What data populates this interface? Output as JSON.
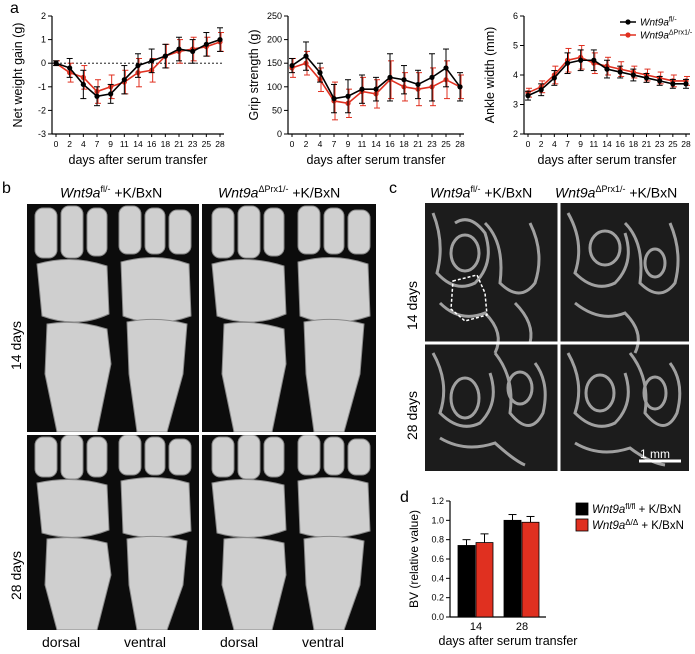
{
  "panels": {
    "a": "a",
    "b": "b",
    "c": "c",
    "d": "d"
  },
  "chart_data": [
    {
      "type": "line",
      "ylabel": "Net weight gain (g)",
      "xlabel": "days after serum transfer",
      "categories": [
        "0",
        "2",
        "4",
        "7",
        "9",
        "11",
        "14",
        "16",
        "18",
        "21",
        "23",
        "25",
        "28"
      ],
      "ylim": [
        -3,
        2
      ],
      "yticks": [
        "-3",
        "-2",
        "-1",
        "0",
        "1",
        "2"
      ],
      "series": [
        {
          "color": "#000000",
          "values": [
            0,
            -0.2,
            -0.9,
            -1.4,
            -1.3,
            -0.7,
            -0.1,
            0.1,
            0.3,
            0.6,
            0.5,
            0.8,
            1.0
          ],
          "err": [
            0.1,
            0.4,
            0.6,
            0.4,
            0.4,
            0.6,
            0.5,
            0.5,
            0.5,
            0.5,
            0.5,
            0.5,
            0.5
          ]
        },
        {
          "color": "#e03020",
          "values": [
            0,
            -0.4,
            -0.6,
            -1.2,
            -1.0,
            -0.8,
            -0.4,
            -0.3,
            0.3,
            0.5,
            0.6,
            0.7,
            0.9
          ],
          "err": [
            0.1,
            0.4,
            0.5,
            0.5,
            0.5,
            0.5,
            0.6,
            0.5,
            0.5,
            0.5,
            0.5,
            0.4,
            0.4
          ]
        }
      ]
    },
    {
      "type": "line",
      "ylabel": "Grip strength (g)",
      "xlabel": "days after serum transfer",
      "categories": [
        "0",
        "2",
        "4",
        "7",
        "9",
        "11",
        "14",
        "16",
        "18",
        "21",
        "23",
        "25",
        "28"
      ],
      "ylim": [
        0,
        250
      ],
      "yticks": [
        "0",
        "50",
        "100",
        "150",
        "200",
        "250"
      ],
      "series": [
        {
          "color": "#000000",
          "values": [
            145,
            165,
            130,
            75,
            80,
            95,
            95,
            120,
            115,
            105,
            120,
            140,
            100
          ],
          "err": [
            15,
            30,
            20,
            30,
            35,
            30,
            25,
            50,
            30,
            30,
            50,
            40,
            30
          ]
        },
        {
          "color": "#e03020",
          "values": [
            140,
            150,
            115,
            70,
            65,
            90,
            85,
            115,
            100,
            95,
            100,
            115,
            100
          ],
          "err": [
            20,
            25,
            25,
            40,
            30,
            30,
            30,
            40,
            30,
            35,
            40,
            40,
            25
          ]
        }
      ]
    },
    {
      "type": "line",
      "ylabel": "Ankle width (mm)",
      "xlabel": "days after serum transfer",
      "categories": [
        "0",
        "2",
        "4",
        "7",
        "9",
        "11",
        "14",
        "16",
        "18",
        "21",
        "23",
        "25",
        "28"
      ],
      "ylim": [
        2,
        6
      ],
      "yticks": [
        "2",
        "3",
        "4",
        "5",
        "6"
      ],
      "series": [
        {
          "name": "Wnt9a",
          "sup": "fl/-",
          "color": "#000000",
          "values": [
            3.3,
            3.5,
            3.9,
            4.4,
            4.5,
            4.5,
            4.2,
            4.1,
            4.0,
            3.9,
            3.8,
            3.7,
            3.7
          ],
          "err": [
            0.15,
            0.2,
            0.25,
            0.35,
            0.35,
            0.35,
            0.3,
            0.2,
            0.2,
            0.15,
            0.15,
            0.15,
            0.15
          ]
        },
        {
          "name": "Wnt9a",
          "sup": "ΔPrx1/-",
          "color": "#e03020",
          "values": [
            3.4,
            3.6,
            4.0,
            4.5,
            4.6,
            4.4,
            4.3,
            4.2,
            4.1,
            4.0,
            3.9,
            3.8,
            3.8
          ],
          "err": [
            0.15,
            0.2,
            0.3,
            0.4,
            0.4,
            0.35,
            0.3,
            0.25,
            0.2,
            0.2,
            0.2,
            0.2,
            0.15
          ]
        }
      ]
    },
    {
      "type": "bar",
      "ylabel": "BV (relative value)",
      "xlabel": "days after serum transfer",
      "categories": [
        "14",
        "28"
      ],
      "ylim": [
        0,
        1.2
      ],
      "yticks": [
        "0.0",
        "0.2",
        "0.4",
        "0.6",
        "0.8",
        "1.0",
        "1.2"
      ],
      "series": [
        {
          "name": "Wnt9a",
          "sup": "fl/fl",
          "suffix": " + K/BxN",
          "color": "#000000",
          "values": [
            0.74,
            1.0
          ],
          "err": [
            0.06,
            0.06
          ]
        },
        {
          "name": "Wnt9a",
          "sup": "Δ/Δ",
          "suffix": " + K/BxN",
          "color": "#e03020",
          "values": [
            0.77,
            0.98
          ],
          "err": [
            0.09,
            0.06
          ]
        }
      ]
    }
  ],
  "panel_b": {
    "col1_gene": "Wnt9a",
    "col1_sup": "fl/-",
    "col1_suffix": " +K/BxN",
    "col2_gene": "Wnt9a",
    "col2_sup": "ΔPrx1/-",
    "col2_suffix": " +K/BxN",
    "row1": "14 days",
    "row2": "28 days",
    "bottom": [
      "dorsal",
      "ventral",
      "dorsal",
      "ventral"
    ]
  },
  "panel_c": {
    "col1_gene": "Wnt9a",
    "col1_sup": "fl/-",
    "col1_suffix": " +K/BxN",
    "col2_gene": "Wnt9a",
    "col2_sup": "ΔPrx1/-",
    "col2_suffix": " +K/BxN",
    "row1": "14 days",
    "row2": "28 days",
    "scalebar": "1 mm"
  }
}
